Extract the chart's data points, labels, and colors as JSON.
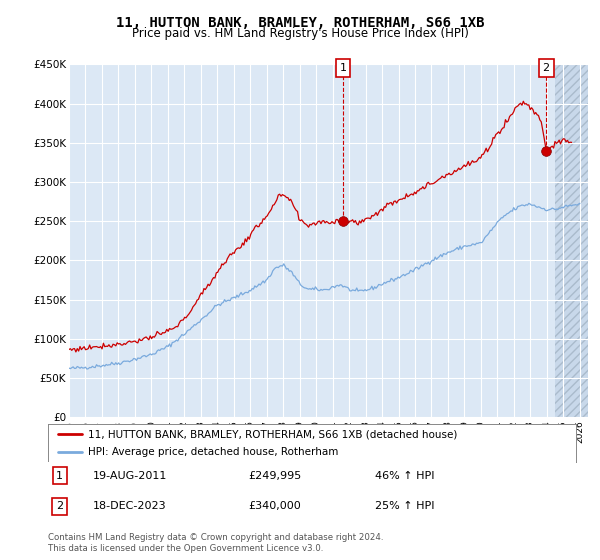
{
  "title": "11, HUTTON BANK, BRAMLEY, ROTHERHAM, S66 1XB",
  "subtitle": "Price paid vs. HM Land Registry's House Price Index (HPI)",
  "footer": "Contains HM Land Registry data © Crown copyright and database right 2024.\nThis data is licensed under the Open Government Licence v3.0.",
  "legend_line1": "11, HUTTON BANK, BRAMLEY, ROTHERHAM, S66 1XB (detached house)",
  "legend_line2": "HPI: Average price, detached house, Rotherham",
  "annotation1_label": "1",
  "annotation1_date": "19-AUG-2011",
  "annotation1_price": "£249,995",
  "annotation1_hpi": "46% ↑ HPI",
  "annotation2_label": "2",
  "annotation2_date": "18-DEC-2023",
  "annotation2_price": "£340,000",
  "annotation2_hpi": "25% ↑ HPI",
  "ylim": [
    0,
    450000
  ],
  "yticks": [
    0,
    50000,
    100000,
    150000,
    200000,
    250000,
    300000,
    350000,
    400000,
    450000
  ],
  "ytick_labels": [
    "£0",
    "£50K",
    "£100K",
    "£150K",
    "£200K",
    "£250K",
    "£300K",
    "£350K",
    "£400K",
    "£450K"
  ],
  "background_color": "#ffffff",
  "plot_bg_color": "#dce8f5",
  "plot_bg_color_hatch": "#c8d8ea",
  "grid_color": "#ffffff",
  "red_color": "#cc0000",
  "blue_color": "#7aaadd",
  "ann_box_color": "#cc0000",
  "hpi_monthly_x": [],
  "hpi_monthly_y": [],
  "sale1_x": 2011.63,
  "sale1_y": 249995,
  "sale2_x": 2023.96,
  "sale2_y": 340000,
  "ann1_x": 2011.63,
  "ann2_x": 2023.96,
  "hatch_start": 2024.5,
  "xmin": 1995,
  "xmax": 2026.5
}
